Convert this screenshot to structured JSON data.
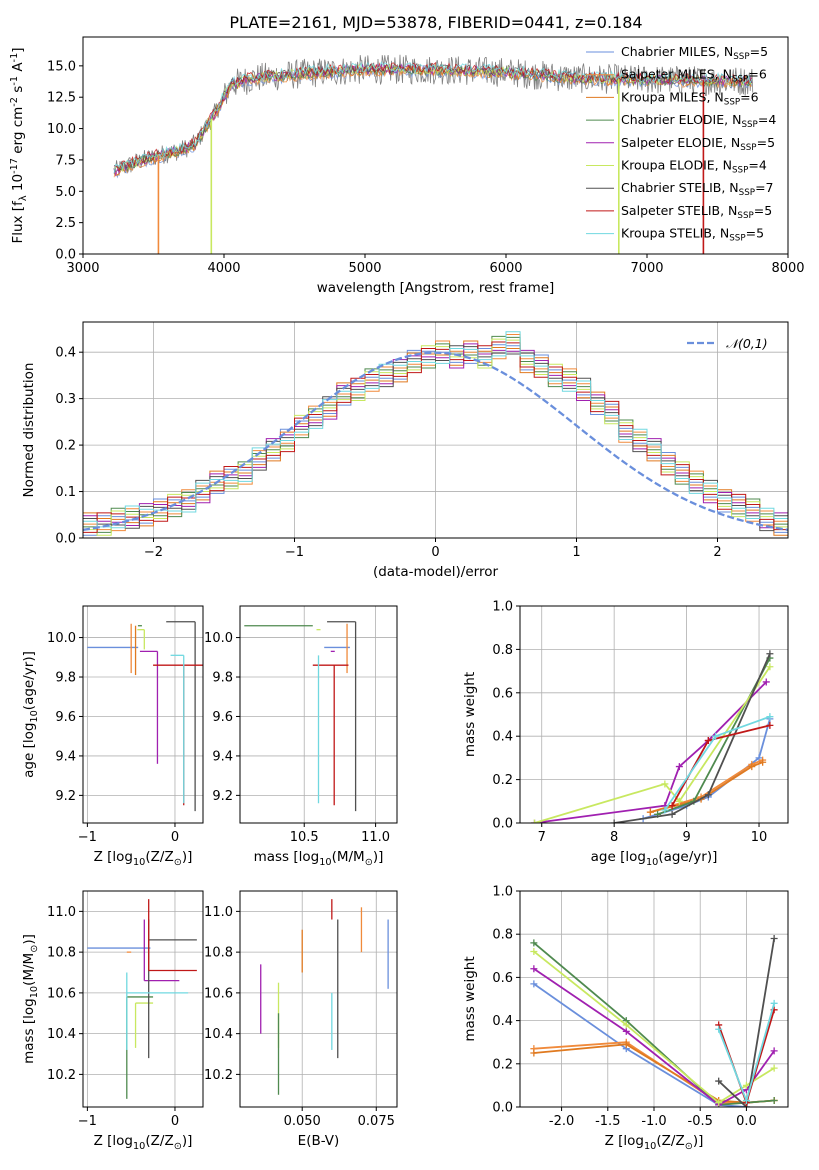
{
  "title": "PLATE=2161, MJD=53878, FIBERID=0441, z=0.184",
  "colors": {
    "Chabrier MILES": "#6a8fdc",
    "Salpeter MILES": "#f08a3b",
    "Kroupa MILES": "#e07a20",
    "Chabrier ELODIE": "#4f8a4f",
    "Salpeter ELODIE": "#a020b0",
    "Kroupa ELODIE": "#c8e860",
    "Chabrier STELIB": "#505050",
    "Salpeter STELIB": "#c01818",
    "Kroupa STELIB": "#70d8e0",
    "data": "#808080",
    "gauss": "#6a8fdc"
  },
  "chart_data": [
    {
      "id": "spectrum",
      "type": "line",
      "xlabel": "wavelength [Angstrom, rest frame]",
      "ylabel": "Flux [f$_\\lambda$ 10$^{-17}$ erg cm$^{-2}$ s$^{-1}$ A$^{-1}$]",
      "xlim": [
        3000,
        8000
      ],
      "ylim": [
        0,
        17.3
      ],
      "xticks": [
        3000,
        4000,
        5000,
        6000,
        7000,
        8000
      ],
      "yticks": [
        0.0,
        2.5,
        5.0,
        7.5,
        10.0,
        12.5,
        15.0
      ],
      "grid": false,
      "legend_position": "upper right",
      "legend": [
        {
          "model": "Chabrier MILES",
          "nssp": "5"
        },
        {
          "model": "Salpeter MILES",
          "nssp": "6"
        },
        {
          "model": "Kroupa MILES",
          "nssp": "6"
        },
        {
          "model": "Chabrier ELODIE",
          "nssp": "4"
        },
        {
          "model": "Salpeter ELODIE",
          "nssp": "5"
        },
        {
          "model": "Kroupa ELODIE",
          "nssp": "4"
        },
        {
          "model": "Chabrier STELIB",
          "nssp": "7"
        },
        {
          "model": "Salpeter STELIB",
          "nssp": "5"
        },
        {
          "model": "Kroupa STELIB",
          "nssp": "5"
        }
      ],
      "continuum": {
        "x": [
          3220,
          3400,
          3550,
          3700,
          3800,
          3950,
          4050,
          4200,
          4400,
          4700,
          5000,
          5500,
          6000,
          6500,
          7000,
          7500,
          7750
        ],
        "y": [
          6.6,
          7.4,
          7.9,
          8.3,
          8.8,
          11.5,
          13.5,
          14.0,
          14.2,
          14.5,
          14.7,
          14.7,
          14.5,
          14.0,
          13.9,
          13.8,
          13.8
        ]
      },
      "model_dropouts": [
        {
          "model": "Salpeter MILES",
          "x": 3535
        },
        {
          "model": "Kroupa ELODIE",
          "x": 3910
        },
        {
          "model": "Kroupa ELODIE",
          "x": 6800
        },
        {
          "model": "Salpeter STELIB",
          "x": 7400
        }
      ]
    },
    {
      "id": "residuals",
      "type": "step",
      "xlabel": "(data-model)/error",
      "ylabel": "Normed distribution",
      "xlim": [
        -2.5,
        2.5
      ],
      "ylim": [
        0,
        0.465
      ],
      "xticks": [
        -2,
        -1,
        0,
        1,
        2
      ],
      "yticks": [
        0.0,
        0.1,
        0.2,
        0.3,
        0.4
      ],
      "grid": true,
      "legend_position": "upper right",
      "legend": [
        "$\\mathcal{N}(0,1)$"
      ],
      "bin_width": 0.1,
      "bin_start": -2.5,
      "histogram_values": [
        0.03,
        0.03,
        0.04,
        0.045,
        0.05,
        0.06,
        0.07,
        0.08,
        0.1,
        0.12,
        0.13,
        0.14,
        0.17,
        0.19,
        0.21,
        0.24,
        0.26,
        0.28,
        0.31,
        0.32,
        0.34,
        0.35,
        0.36,
        0.38,
        0.39,
        0.4,
        0.39,
        0.4,
        0.39,
        0.41,
        0.42,
        0.38,
        0.37,
        0.35,
        0.34,
        0.32,
        0.29,
        0.27,
        0.23,
        0.21,
        0.19,
        0.16,
        0.14,
        0.12,
        0.1,
        0.08,
        0.07,
        0.06,
        0.04,
        0.03
      ]
    },
    {
      "id": "z_age",
      "type": "errorbar",
      "xlabel": "Z [log$_{10}$(Z/Z$_\\odot$)]",
      "ylabel": "age  [log$_{10}$(age/yr)]",
      "xlim": [
        -1.05,
        0.32
      ],
      "ylim": [
        9.06,
        10.16
      ],
      "xticks": [
        -1,
        0
      ],
      "yticks": [
        9.2,
        9.4,
        9.6,
        9.8,
        10.0
      ],
      "grid": true,
      "points": [
        {
          "model": "Chabrier MILES",
          "x": -1.0,
          "xerr": [
            0.0,
            0.58
          ],
          "y": 9.95,
          "yerr": [
            0.0,
            0.0
          ]
        },
        {
          "model": "Salpeter MILES",
          "x": -0.5,
          "xerr": [
            0.0,
            0.0
          ],
          "y": 9.95,
          "yerr": [
            0.13,
            0.12
          ]
        },
        {
          "model": "Kroupa MILES",
          "x": -0.45,
          "xerr": [
            0.0,
            0.0
          ],
          "y": 9.94,
          "yerr": [
            0.13,
            0.12
          ]
        },
        {
          "model": "Chabrier ELODIE",
          "x": -0.4,
          "xerr": [
            0.0,
            0.0
          ],
          "y": 10.06,
          "yerr": [
            0.0,
            0.0
          ]
        },
        {
          "model": "Salpeter ELODIE",
          "x": -0.2,
          "xerr": [
            0.2,
            0.0
          ],
          "y": 9.93,
          "yerr": [
            0.57,
            0.0
          ]
        },
        {
          "model": "Kroupa ELODIE",
          "x": -0.35,
          "xerr": [
            0.08,
            0.0
          ],
          "y": 10.04,
          "yerr": [
            0.1,
            0.0
          ]
        },
        {
          "model": "Chabrier STELIB",
          "x": 0.23,
          "xerr": [
            0.33,
            0.0
          ],
          "y": 10.08,
          "yerr": [
            0.96,
            0.0
          ]
        },
        {
          "model": "Salpeter STELIB",
          "x": 0.1,
          "xerr": [
            0.35,
            0.25
          ],
          "y": 9.86,
          "yerr": [
            0.71,
            0.0
          ]
        },
        {
          "model": "Kroupa STELIB",
          "x": 0.1,
          "xerr": [
            0.15,
            0.0
          ],
          "y": 9.91,
          "yerr": [
            0.75,
            0.0
          ]
        }
      ]
    },
    {
      "id": "mass_age",
      "type": "errorbar",
      "xlabel": "mass [log$_{10}$(M/M$_\\odot$)]",
      "ylabel": "",
      "xlim": [
        10.05,
        11.15
      ],
      "ylim": [
        9.06,
        10.16
      ],
      "xticks": [
        10.5,
        11.0
      ],
      "yticks": [
        9.2,
        9.4,
        9.6,
        9.8,
        10.0
      ],
      "grid": true,
      "points": [
        {
          "model": "Chabrier MILES",
          "x": 10.82,
          "xerr": [
            0.18,
            0.0
          ],
          "y": 9.95,
          "yerr": [
            0.0,
            0.0
          ]
        },
        {
          "model": "Salpeter MILES",
          "x": 10.8,
          "xerr": [
            0.0,
            0.0
          ],
          "y": 9.95,
          "yerr": [
            0.13,
            0.12
          ]
        },
        {
          "model": "Chabrier ELODIE",
          "x": 10.56,
          "xerr": [
            0.48,
            0.0
          ],
          "y": 10.06,
          "yerr": [
            0.0,
            0.0
          ]
        },
        {
          "model": "Salpeter ELODIE",
          "x": 10.7,
          "xerr": [
            0.0,
            0.0
          ],
          "y": 9.93,
          "yerr": [
            0.0,
            0.0
          ]
        },
        {
          "model": "Kroupa ELODIE",
          "x": 10.6,
          "xerr": [
            0.0,
            0.0
          ],
          "y": 10.04,
          "yerr": [
            0.0,
            0.0
          ]
        },
        {
          "model": "Chabrier STELIB",
          "x": 10.86,
          "xerr": [
            0.2,
            0.0
          ],
          "y": 10.08,
          "yerr": [
            0.96,
            0.0
          ]
        },
        {
          "model": "Salpeter STELIB",
          "x": 10.71,
          "xerr": [
            0.15,
            0.1
          ],
          "y": 9.86,
          "yerr": [
            0.71,
            0.0
          ]
        },
        {
          "model": "Kroupa STELIB",
          "x": 10.6,
          "xerr": [
            0.0,
            0.0
          ],
          "y": 9.91,
          "yerr": [
            0.75,
            0.0
          ]
        }
      ]
    },
    {
      "id": "age_weight",
      "type": "line",
      "xlabel": "age  [log$_{10}$(age/yr)]",
      "ylabel": "mass weight",
      "xlim": [
        6.7,
        10.4
      ],
      "ylim": [
        0,
        1.0
      ],
      "xticks": [
        7,
        8,
        9,
        10
      ],
      "yticks": [
        0.0,
        0.2,
        0.4,
        0.6,
        0.8,
        1.0
      ],
      "grid": true,
      "series": [
        {
          "name": "Chabrier MILES",
          "x": [
            8.4,
            9.0,
            9.3,
            10.0,
            10.15
          ],
          "y": [
            0.02,
            0.08,
            0.12,
            0.3,
            0.48
          ]
        },
        {
          "name": "Salpeter MILES",
          "x": [
            8.5,
            9.2,
            9.9,
            10.05
          ],
          "y": [
            0.05,
            0.12,
            0.27,
            0.29
          ]
        },
        {
          "name": "Kroupa MILES",
          "x": [
            8.5,
            9.2,
            9.9,
            10.05
          ],
          "y": [
            0.05,
            0.11,
            0.26,
            0.28
          ]
        },
        {
          "name": "Chabrier ELODIE",
          "x": [
            8.6,
            9.1,
            10.15
          ],
          "y": [
            0.04,
            0.1,
            0.76
          ]
        },
        {
          "name": "Salpeter ELODIE",
          "x": [
            6.9,
            8.7,
            8.9,
            9.3,
            10.1
          ],
          "y": [
            0.0,
            0.08,
            0.26,
            0.38,
            0.65
          ]
        },
        {
          "name": "Kroupa ELODIE",
          "x": [
            6.9,
            8.7,
            8.9,
            10.15
          ],
          "y": [
            0.0,
            0.18,
            0.1,
            0.72
          ]
        },
        {
          "name": "Chabrier STELIB",
          "x": [
            8.0,
            8.8,
            9.3,
            10.15
          ],
          "y": [
            0.0,
            0.04,
            0.13,
            0.78
          ]
        },
        {
          "name": "Salpeter STELIB",
          "x": [
            8.8,
            9.3,
            10.15
          ],
          "y": [
            0.08,
            0.38,
            0.45
          ]
        },
        {
          "name": "Kroupa STELIB",
          "x": [
            8.7,
            9.4,
            10.15
          ],
          "y": [
            0.06,
            0.4,
            0.49
          ]
        }
      ]
    },
    {
      "id": "z_mass",
      "type": "errorbar",
      "xlabel": "Z [log$_{10}$(Z/Z$_\\odot$)]",
      "ylabel": "mass [log$_{10}$(M/M$_\\odot$)]",
      "xlim": [
        -1.05,
        0.32
      ],
      "ylim": [
        10.04,
        11.1
      ],
      "xticks": [
        -1,
        0
      ],
      "yticks": [
        10.2,
        10.4,
        10.6,
        10.8,
        11.0
      ],
      "grid": true,
      "points": [
        {
          "model": "Chabrier MILES",
          "x": -1.0,
          "xerr": [
            0.0,
            0.72
          ],
          "y": 10.82,
          "yerr": [
            0.0,
            0.0
          ]
        },
        {
          "model": "Salpeter MILES",
          "x": -0.55,
          "xerr": [
            0.0,
            0.05
          ],
          "y": 10.8,
          "yerr": [
            0.0,
            0.0
          ]
        },
        {
          "model": "Chabrier ELODIE",
          "x": -0.55,
          "xerr": [
            0.0,
            0.3
          ],
          "y": 10.58,
          "yerr": [
            0.5,
            0.0
          ]
        },
        {
          "model": "Salpeter ELODIE",
          "x": -0.35,
          "xerr": [
            0.0,
            0.4
          ],
          "y": 10.66,
          "yerr": [
            0.0,
            0.3
          ]
        },
        {
          "model": "Kroupa ELODIE",
          "x": -0.45,
          "xerr": [
            0.0,
            0.2
          ],
          "y": 10.55,
          "yerr": [
            0.22,
            0.0
          ]
        },
        {
          "model": "Chabrier STELIB",
          "x": -0.3,
          "xerr": [
            0.0,
            0.55
          ],
          "y": 10.86,
          "yerr": [
            0.58,
            0.1
          ]
        },
        {
          "model": "Salpeter STELIB",
          "x": -0.3,
          "xerr": [
            0.0,
            0.55
          ],
          "y": 10.71,
          "yerr": [
            0.0,
            0.35
          ]
        },
        {
          "model": "Kroupa STELIB",
          "x": -0.55,
          "xerr": [
            0.0,
            0.7
          ],
          "y": 10.6,
          "yerr": [
            0.28,
            0.1
          ]
        }
      ]
    },
    {
      "id": "ebv_mass",
      "type": "errorbar",
      "xlabel": "E(B-V)",
      "ylabel": "",
      "xlim": [
        0.029,
        0.082
      ],
      "ylim": [
        10.04,
        11.1
      ],
      "xticks": [
        0.05,
        0.075
      ],
      "yticks": [
        10.2,
        10.4,
        10.6,
        10.8,
        11.0
      ],
      "grid": true,
      "points": [
        {
          "model": "Salpeter ELODIE",
          "x": 0.036,
          "y": 10.57,
          "yerr": [
            0.17,
            0.17
          ]
        },
        {
          "model": "Kroupa ELODIE",
          "x": 0.042,
          "y": 10.55,
          "yerr": [
            0.22,
            0.1
          ]
        },
        {
          "model": "Chabrier ELODIE",
          "x": 0.042,
          "y": 10.5,
          "yerr": [
            0.4,
            0.0
          ]
        },
        {
          "model": "Kroupa MILES",
          "x": 0.05,
          "y": 10.8,
          "yerr": [
            0.1,
            0.11
          ]
        },
        {
          "model": "Salpeter STELIB",
          "x": 0.06,
          "y": 10.96,
          "yerr": [
            0.0,
            0.1
          ]
        },
        {
          "model": "Kroupa STELIB",
          "x": 0.06,
          "y": 10.6,
          "yerr": [
            0.28,
            0.0
          ]
        },
        {
          "model": "Chabrier STELIB",
          "x": 0.062,
          "y": 10.6,
          "yerr": [
            0.32,
            0.36
          ]
        },
        {
          "model": "Salpeter MILES",
          "x": 0.07,
          "y": 10.9,
          "yerr": [
            0.1,
            0.12
          ]
        },
        {
          "model": "Chabrier MILES",
          "x": 0.079,
          "y": 10.8,
          "yerr": [
            0.18,
            0.16
          ]
        }
      ]
    },
    {
      "id": "z_weight",
      "type": "line",
      "xlabel": "Z [log$_{10}$(Z/Z$_\\odot$)]",
      "ylabel": "mass weight",
      "xlim": [
        -2.45,
        0.45
      ],
      "ylim": [
        0,
        1.0
      ],
      "xticks": [
        -2.0,
        -1.5,
        -1.0,
        -0.5,
        0.0
      ],
      "yticks": [
        0.0,
        0.2,
        0.4,
        0.6,
        0.8,
        1.0
      ],
      "grid": true,
      "series": [
        {
          "name": "Chabrier MILES",
          "x": [
            -2.3,
            -1.3,
            -0.3,
            0.0
          ],
          "y": [
            0.57,
            0.27,
            0.01,
            0.0
          ]
        },
        {
          "name": "Salpeter MILES",
          "x": [
            -2.3,
            -1.3,
            -0.3,
            0.0,
            0.3
          ],
          "y": [
            0.27,
            0.3,
            0.02,
            0.02,
            0.03
          ]
        },
        {
          "name": "Kroupa MILES",
          "x": [
            -2.3,
            -1.3,
            -0.3,
            0.0,
            0.3
          ],
          "y": [
            0.25,
            0.29,
            0.03,
            0.02,
            0.03
          ]
        },
        {
          "name": "Chabrier ELODIE",
          "x": [
            -2.3,
            -1.3,
            -0.3,
            0.0,
            0.3
          ],
          "y": [
            0.76,
            0.4,
            0.01,
            0.02,
            0.03
          ]
        },
        {
          "name": "Salpeter ELODIE",
          "x": [
            -2.3,
            -1.3,
            -0.3,
            0.0,
            0.3
          ],
          "y": [
            0.64,
            0.35,
            0.01,
            0.08,
            0.26
          ]
        },
        {
          "name": "Kroupa ELODIE",
          "x": [
            -2.3,
            -1.3,
            -0.3,
            0.0,
            0.3
          ],
          "y": [
            0.72,
            0.38,
            0.02,
            0.1,
            0.18
          ]
        },
        {
          "name": "Chabrier STELIB",
          "x": [
            -0.3,
            0.0,
            0.3
          ],
          "y": [
            0.12,
            0.0,
            0.78
          ]
        },
        {
          "name": "Salpeter STELIB",
          "x": [
            -0.3,
            0.0,
            0.3
          ],
          "y": [
            0.38,
            0.02,
            0.45
          ]
        },
        {
          "name": "Kroupa STELIB",
          "x": [
            -0.3,
            0.0,
            0.3
          ],
          "y": [
            0.36,
            0.03,
            0.48
          ]
        }
      ]
    }
  ]
}
